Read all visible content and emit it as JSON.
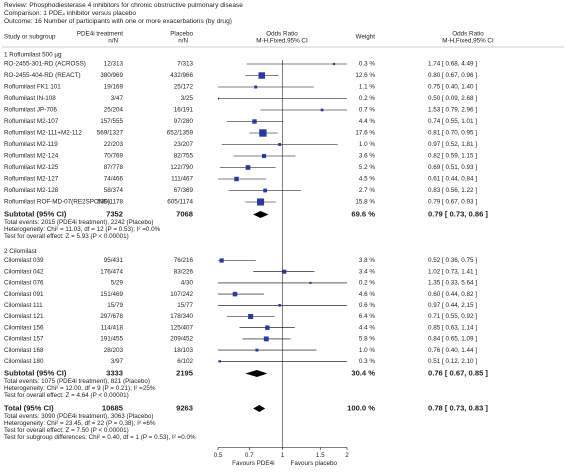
{
  "chart_data": {
    "type": "forest",
    "review": "Review: Phosphodiesterase 4 inhibitors for chronic obstructive pulmonary disease",
    "comparison": "Comparison: 1 PDE₄ inhibitor versus placebo",
    "outcome": "Outcome: 16 Number of participants with one or more exacerbations (by drug)",
    "columns": {
      "study": "Study or subgroup",
      "treatment": [
        "PDE4i treatment",
        "n/N"
      ],
      "placebo": [
        "Placebo",
        "n/N"
      ],
      "plot": [
        "Odds Ratio",
        "M-H,Fixed,95% CI"
      ],
      "weight": "Weight",
      "effect": [
        "Odds Ratio",
        "M-H,Fixed,95% CI"
      ]
    },
    "groups": [
      {
        "title": "1 Roflumilast 500 µg",
        "color": "#2b3a9e",
        "studies": [
          {
            "name": "RO-2455-301-RD (ACROSS)",
            "treatment": "12/313",
            "placebo": "7/313",
            "weight": 0.3,
            "weight_label": "0.3 %",
            "or": 1.74,
            "ci": [
              0.68,
              4.49
            ],
            "or_label": "1.74 [ 0.68, 4.49 ]"
          },
          {
            "name": "RO-2455-404-RD (REACT)",
            "treatment": "380/969",
            "placebo": "432/966",
            "weight": 12.6,
            "weight_label": "12.6 %",
            "or": 0.8,
            "ci": [
              0.67,
              0.96
            ],
            "or_label": "0.80 [ 0.67, 0.96 ]"
          },
          {
            "name": "Roflumilast FK1 101",
            "treatment": "19/169",
            "placebo": "25/172",
            "weight": 1.1,
            "weight_label": "1.1 %",
            "or": 0.75,
            "ci": [
              0.4,
              1.4
            ],
            "or_label": "0.75 [ 0.40, 1.40 ]"
          },
          {
            "name": "Roflumilast IN-108",
            "treatment": "3/47",
            "placebo": "3/25",
            "weight": 0.2,
            "weight_label": "0.2 %",
            "or": 0.5,
            "ci": [
              0.09,
              2.68
            ],
            "or_label": "0.50 [ 0.09, 2.68 ]"
          },
          {
            "name": "Roflumilast JP-706",
            "treatment": "25/204",
            "placebo": "16/191",
            "weight": 0.7,
            "weight_label": "0.7 %",
            "or": 1.53,
            "ci": [
              0.79,
              2.96
            ],
            "or_label": "1.53 [ 0.79, 2.96 ]"
          },
          {
            "name": "Roflumilast M2-107",
            "treatment": "157/555",
            "placebo": "97/280",
            "weight": 4.4,
            "weight_label": "4.4 %",
            "or": 0.74,
            "ci": [
              0.55,
              1.01
            ],
            "or_label": "0.74 [ 0.55, 1.01 ]"
          },
          {
            "name": "Roflumilast M2-111+M2-112",
            "treatment": "569/1327",
            "placebo": "652/1359",
            "weight": 17.6,
            "weight_label": "17.6 %",
            "or": 0.81,
            "ci": [
              0.7,
              0.95
            ],
            "or_label": "0.81 [ 0.70, 0.95 ]"
          },
          {
            "name": "Roflumilast M2-119",
            "treatment": "22/203",
            "placebo": "23/207",
            "weight": 1.0,
            "weight_label": "1.0 %",
            "or": 0.97,
            "ci": [
              0.52,
              1.81
            ],
            "or_label": "0.97 [ 0.52, 1.81 ]"
          },
          {
            "name": "Roflumilast M2-124",
            "treatment": "70/769",
            "placebo": "82/755",
            "weight": 3.6,
            "weight_label": "3.6 %",
            "or": 0.82,
            "ci": [
              0.59,
              1.15
            ],
            "or_label": "0.82 [ 0.59, 1.15 ]"
          },
          {
            "name": "Roflumilast M2-125",
            "treatment": "87/778",
            "placebo": "122/790",
            "weight": 5.2,
            "weight_label": "5.2 %",
            "or": 0.69,
            "ci": [
              0.51,
              0.93
            ],
            "or_label": "0.69 [ 0.51, 0.93 ]"
          },
          {
            "name": "Roflumilast M2-127",
            "treatment": "74/466",
            "placebo": "111/467",
            "weight": 4.5,
            "weight_label": "4.5 %",
            "or": 0.61,
            "ci": [
              0.44,
              0.84
            ],
            "or_label": "0.61 [ 0.44, 0.84 ]"
          },
          {
            "name": "Roflumilast M2-128",
            "treatment": "58/374",
            "placebo": "67/369",
            "weight": 2.7,
            "weight_label": "2.7 %",
            "or": 0.83,
            "ci": [
              0.56,
              1.22
            ],
            "or_label": "0.83 [ 0.56, 1.22 ]"
          },
          {
            "name": "Roflumilast ROF-MD-07(RE2SPOND)",
            "treatment": "539/1178",
            "placebo": "605/1174",
            "weight": 15.8,
            "weight_label": "15.8 %",
            "or": 0.79,
            "ci": [
              0.67,
              0.93
            ],
            "or_label": "0.79 [ 0.67, 0.93 ]"
          }
        ],
        "subtotal": {
          "label": "Subtotal (95% CI)",
          "treatment": 7352,
          "placebo": 7068,
          "weight": 69.6,
          "weight_label": "69.6 %",
          "or": 0.79,
          "ci": [
            0.73,
            0.86
          ],
          "or_label": "0.79 [ 0.73, 0.86 ]"
        },
        "notes": [
          "Total events: 2015 (PDE4i treatment), 2242 (Placebo)",
          "Heterogeneity: Chi² = 11.03, df = 12 (P = 0.53); I² =0.0%",
          "Test for overall effect: Z = 5.93 (P < 0.00001)"
        ]
      },
      {
        "title": "2 Cilomilast",
        "color": "#2b3a9e",
        "studies": [
          {
            "name": "Cilomilast 039",
            "treatment": "95/431",
            "placebo": "76/216",
            "weight": 3.8,
            "weight_label": "3.8 %",
            "or": 0.52,
            "ci": [
              0.36,
              0.75
            ],
            "or_label": "0.52 [ 0.36, 0.75 ]"
          },
          {
            "name": "Cilomilast 042",
            "treatment": "176/474",
            "placebo": "83/226",
            "weight": 3.4,
            "weight_label": "3.4 %",
            "or": 1.02,
            "ci": [
              0.73,
              1.41
            ],
            "or_label": "1.02 [ 0.73, 1.41 ]"
          },
          {
            "name": "Cilomilast 076",
            "treatment": "5/29",
            "placebo": "4/30",
            "weight": 0.2,
            "weight_label": "0.2 %",
            "or": 1.35,
            "ci": [
              0.33,
              5.64
            ],
            "or_label": "1.35 [ 0.33, 5.64 ]"
          },
          {
            "name": "Cilomilast 091",
            "treatment": "151/469",
            "placebo": "107/242",
            "weight": 4.6,
            "weight_label": "4.6 %",
            "or": 0.6,
            "ci": [
              0.44,
              0.82
            ],
            "or_label": "0.60 [ 0.44, 0.82 ]"
          },
          {
            "name": "Cilomilast 111",
            "treatment": "15/79",
            "placebo": "15/77",
            "weight": 0.6,
            "weight_label": "0.6 %",
            "or": 0.97,
            "ci": [
              0.44,
              2.15
            ],
            "or_label": "0.97 [ 0.44, 2.15 ]"
          },
          {
            "name": "Cilomilast 121",
            "treatment": "297/678",
            "placebo": "178/340",
            "weight": 6.4,
            "weight_label": "6.4 %",
            "or": 0.71,
            "ci": [
              0.55,
              0.92
            ],
            "or_label": "0.71 [ 0.55, 0.92 ]"
          },
          {
            "name": "Cilomilast 156",
            "treatment": "114/418",
            "placebo": "125/407",
            "weight": 4.4,
            "weight_label": "4.4 %",
            "or": 0.85,
            "ci": [
              0.63,
              1.14
            ],
            "or_label": "0.85 [ 0.63, 1.14 ]"
          },
          {
            "name": "Cilomilast 157",
            "treatment": "191/455",
            "placebo": "209/452",
            "weight": 5.8,
            "weight_label": "5.8 %",
            "or": 0.84,
            "ci": [
              0.65,
              1.09
            ],
            "or_label": "0.84 [ 0.65, 1.09 ]"
          },
          {
            "name": "Cilomilast 168",
            "treatment": "28/203",
            "placebo": "18/103",
            "weight": 1.0,
            "weight_label": "1.0 %",
            "or": 0.76,
            "ci": [
              0.4,
              1.44
            ],
            "or_label": "0.76 [ 0.40, 1.44 ]"
          },
          {
            "name": "Cilomilast 180",
            "treatment": "3/97",
            "placebo": "6/102",
            "weight": 0.3,
            "weight_label": "0.3 %",
            "or": 0.51,
            "ci": [
              0.12,
              2.1
            ],
            "or_label": "0.51 [ 0.12, 2.10 ]"
          }
        ],
        "subtotal": {
          "label": "Subtotal (95% CI)",
          "treatment": 3333,
          "placebo": 2195,
          "weight": 30.4,
          "weight_label": "30.4 %",
          "or": 0.76,
          "ci": [
            0.67,
            0.85
          ],
          "or_label": "0.76 [ 0.67, 0.85 ]"
        },
        "notes": [
          "Total events: 1075 (PDE4i treatment), 821 (Placebo)",
          "Heterogeneity: Chi² = 12.00, df = 9 (P = 0.21); I² =25%",
          "Test for overall effect: Z = 4.64 (P < 0.00001)"
        ]
      }
    ],
    "total": {
      "label": "Total (95% CI)",
      "treatment": 10685,
      "placebo": 9263,
      "weight": 100.0,
      "weight_label": "100.0 %",
      "or": 0.78,
      "ci": [
        0.73,
        0.83
      ],
      "or_label": "0.78 [ 0.73, 0.83 ]",
      "notes": [
        "Total events: 3090 (PDE4i treatment), 3063 (Placebo)",
        "Heterogeneity: Chi² = 23.45, df = 22 (P = 0.38); I² =6%",
        "Test for overall effect: Z = 7.50 (P < 0.00001)",
        "Test for subgroup differences: Chi² = 0.40, df = 1 (P = 0.53), I² =0.0%"
      ]
    },
    "xlim": [
      0.5,
      2
    ],
    "xticks": [
      0.5,
      0.7,
      1,
      1.5,
      2
    ],
    "log_scale": true,
    "favours": [
      "Favours PDE4i",
      "Favours placebo"
    ]
  }
}
